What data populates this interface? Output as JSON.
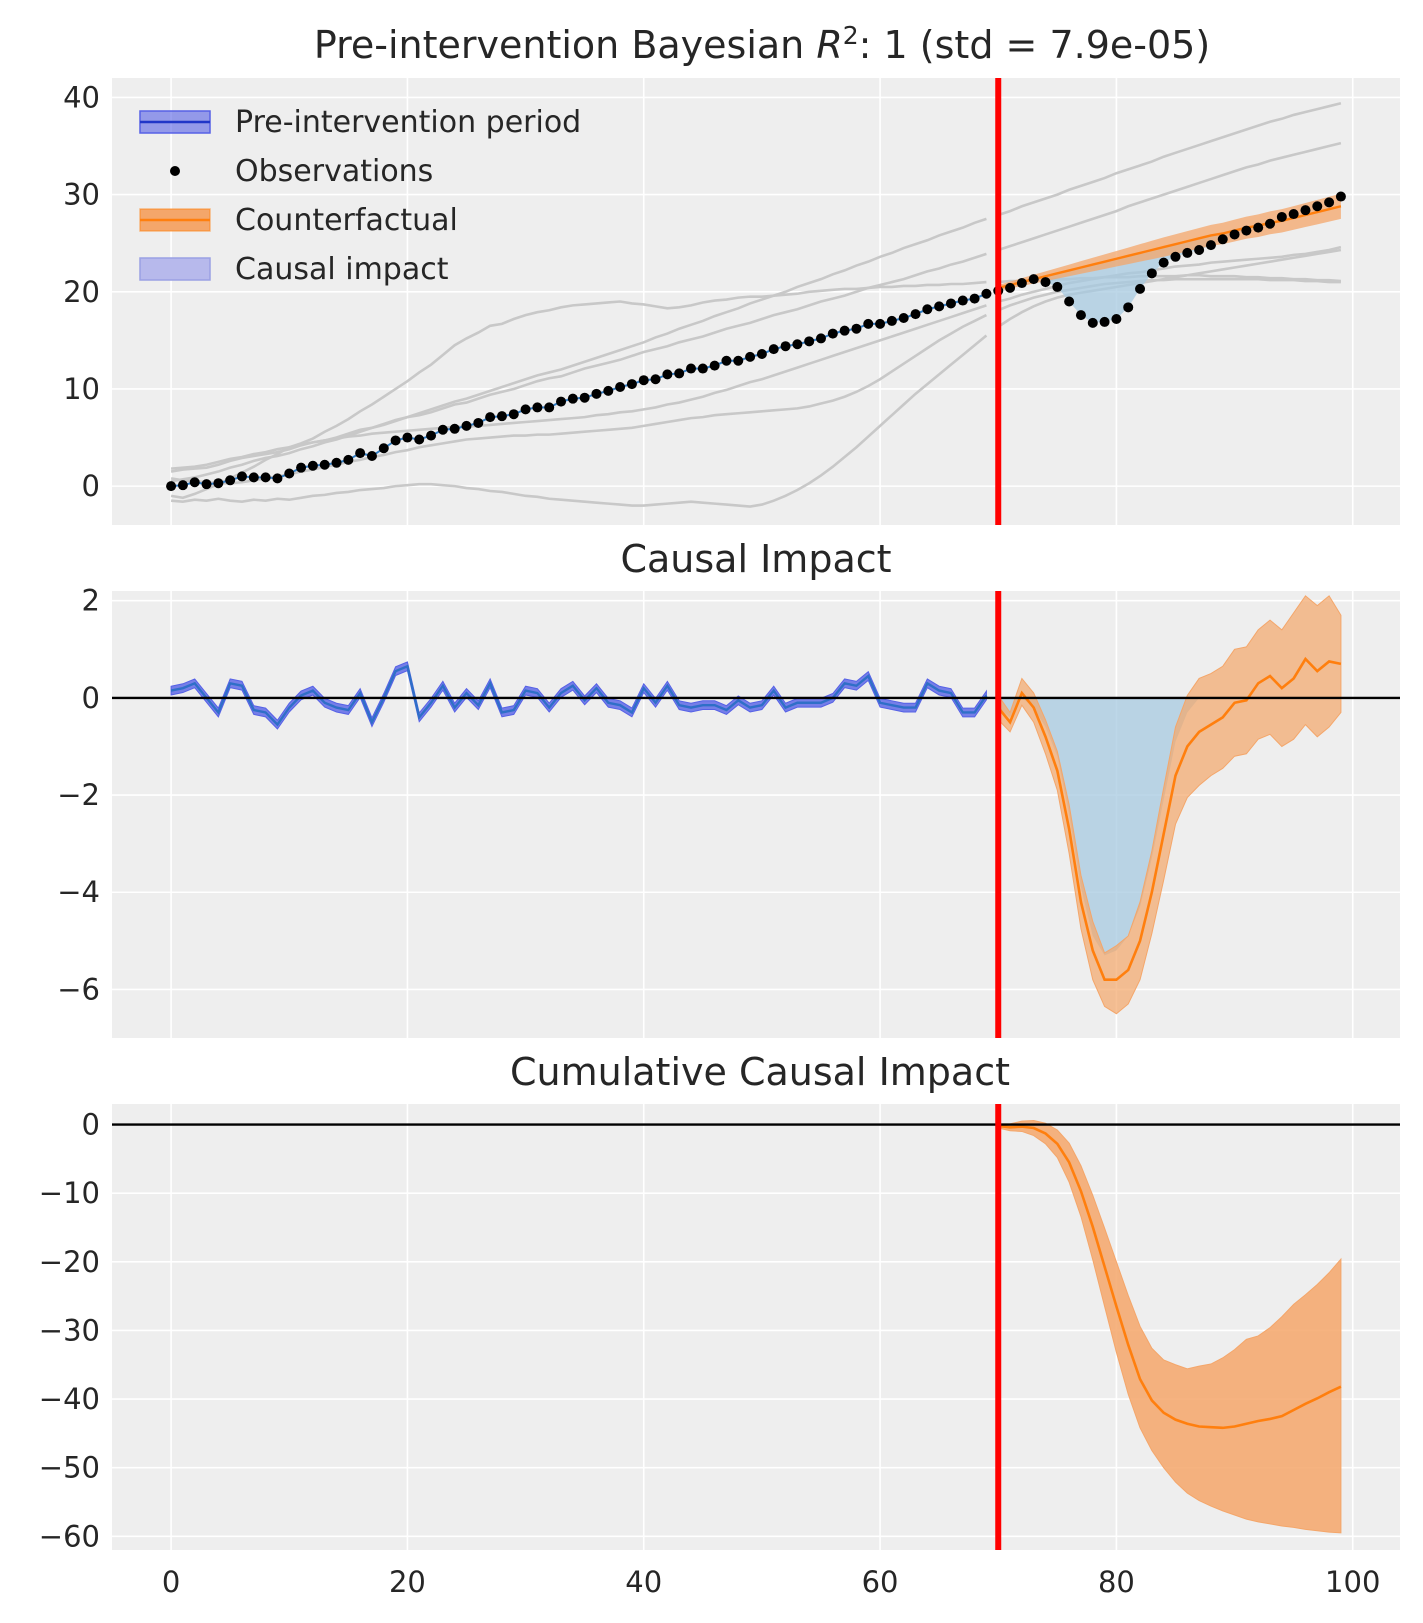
{
  "figure": {
    "background": "#ffffff",
    "axes_background": "#eeeeee",
    "grid_color": "#ffffff"
  },
  "colors": {
    "pre_band": "#5661e6",
    "pre_line": "#2f7fc1",
    "pre_line_panel": "#2f6fc8",
    "counterfactual": "#ff7f0e",
    "counterfactual_band": "#f4a66a",
    "impact_fill": "#a7c9e0",
    "observations": "#000000",
    "controls": "#c8c8c8",
    "intervention": "#ff0000",
    "zero_line": "#000000"
  },
  "chart_data": [
    {
      "type": "line",
      "id": "pre_fit",
      "title_prefix": "Pre-intervention Bayesian ",
      "title_math": "R",
      "title_superscript": "2",
      "title_suffix": ": 1 (std = 7.9e-05)",
      "xlim": [
        -5,
        104
      ],
      "ylim": [
        -4,
        42
      ],
      "xticks": [
        0,
        20,
        40,
        60,
        80,
        100
      ],
      "yticks": [
        0,
        10,
        20,
        30,
        40
      ],
      "ytick_labels": [
        "0",
        "10",
        "20",
        "30",
        "40"
      ],
      "intervention_x": 70,
      "legend_position": "upper-left",
      "legend": [
        {
          "key": "pre",
          "label": "Pre-intervention period"
        },
        {
          "key": "obs",
          "label": "Observations"
        },
        {
          "key": "cf",
          "label": "Counterfactual"
        },
        {
          "key": "impact",
          "label": "Causal impact"
        }
      ],
      "observations": [
        0.0,
        0.1,
        0.4,
        0.2,
        0.3,
        0.6,
        1.0,
        0.9,
        0.9,
        0.8,
        1.3,
        1.9,
        2.1,
        2.2,
        2.4,
        2.7,
        3.4,
        3.1,
        3.9,
        4.7,
        5.0,
        4.8,
        5.2,
        5.8,
        5.9,
        6.2,
        6.5,
        7.1,
        7.2,
        7.4,
        7.9,
        8.1,
        8.1,
        8.7,
        9.0,
        9.1,
        9.5,
        9.8,
        10.2,
        10.5,
        10.9,
        11.0,
        11.5,
        11.6,
        12.1,
        12.1,
        12.4,
        12.9,
        12.9,
        13.3,
        13.6,
        14.1,
        14.4,
        14.6,
        14.9,
        15.2,
        15.7,
        16.0,
        16.2,
        16.7,
        16.7,
        17.0,
        17.3,
        17.7,
        18.2,
        18.5,
        18.8,
        19.1,
        19.3,
        19.8,
        20.1,
        20.4,
        20.9,
        21.3,
        21.0,
        20.5,
        19.0,
        17.6,
        16.8,
        16.9,
        17.2,
        18.4,
        20.3,
        21.9,
        23.0,
        23.6,
        24.0,
        24.3,
        24.8,
        25.4,
        25.9,
        26.3,
        26.6,
        27.0,
        27.7,
        28.0,
        28.4,
        28.8,
        29.2,
        29.8
      ],
      "counterfactual_start": 70,
      "counterfactual": [
        20.4,
        20.7,
        21.0,
        21.3,
        21.6,
        21.9,
        22.2,
        22.5,
        22.8,
        23.1,
        23.4,
        23.7,
        24.0,
        24.3,
        24.6,
        24.9,
        25.2,
        25.5,
        25.8,
        26.0,
        26.3,
        26.6,
        26.8,
        27.1,
        27.3,
        27.6,
        27.9,
        28.2,
        28.5,
        28.8
      ],
      "counterfactual_halfwidth": [
        0.3,
        0.35,
        0.4,
        0.45,
        0.5,
        0.55,
        0.6,
        0.65,
        0.7,
        0.75,
        0.8,
        0.85,
        0.9,
        0.95,
        1.0,
        1.02,
        1.04,
        1.06,
        1.08,
        1.1,
        1.12,
        1.14,
        1.16,
        1.18,
        1.2,
        1.22,
        1.24,
        1.26,
        1.28,
        1.3
      ],
      "controls": [
        [
          1.5,
          1.7,
          1.8,
          1.9,
          2.2,
          2.6,
          2.9,
          3.1,
          3.3,
          3.5,
          3.8,
          4.2,
          4.5,
          4.7,
          5.0,
          5.4,
          5.8,
          6.0,
          6.4,
          6.8,
          7.1,
          7.3,
          7.6,
          8.0,
          8.4,
          8.6,
          9.0,
          9.4,
          9.7,
          10.0,
          10.4,
          10.8,
          11.1,
          11.3,
          11.7,
          12.1,
          12.4,
          12.7,
          13.0,
          13.4,
          13.8,
          14.1,
          14.4,
          14.8,
          15.1,
          15.4,
          15.8,
          16.2,
          16.5,
          16.8,
          17.2,
          17.6,
          17.9,
          18.2,
          18.6,
          19.0,
          19.3,
          19.6,
          20.0,
          20.4,
          20.7,
          21.0,
          21.3,
          21.7,
          22.1,
          22.4,
          22.8,
          23.1,
          23.5,
          23.9,
          24.3,
          24.7,
          25.1,
          25.5,
          25.9,
          26.3,
          26.7,
          27.1,
          27.5,
          27.9,
          28.3,
          28.8,
          29.2,
          29.6,
          30.0,
          30.4,
          30.8,
          31.2,
          31.6,
          32.0,
          32.4,
          32.8,
          33.1,
          33.5,
          33.8,
          34.1,
          34.4,
          34.7,
          35.0,
          35.3
        ],
        [
          -1.0,
          -1.2,
          -0.8,
          -0.3,
          0.2,
          0.8,
          1.4,
          2.0,
          2.7,
          3.3,
          4.0,
          4.4,
          4.9,
          5.6,
          6.2,
          6.9,
          7.7,
          8.4,
          9.2,
          10.0,
          10.8,
          11.7,
          12.5,
          13.5,
          14.5,
          15.2,
          15.8,
          16.5,
          16.7,
          17.2,
          17.6,
          17.9,
          18.1,
          18.4,
          18.6,
          18.7,
          18.8,
          18.9,
          19.0,
          18.8,
          18.7,
          18.5,
          18.3,
          18.4,
          18.6,
          18.9,
          19.1,
          19.2,
          19.4,
          19.5,
          19.5,
          19.6,
          19.7,
          19.8,
          20.0,
          20.1,
          20.2,
          20.3,
          20.3,
          20.4,
          20.5,
          20.5,
          20.6,
          20.6,
          20.7,
          20.7,
          20.8,
          20.8,
          20.9,
          21.0,
          21.0,
          21.1,
          21.1,
          21.2,
          21.2,
          21.3,
          21.3,
          21.4,
          21.4,
          21.5,
          21.5,
          21.5,
          21.6,
          21.6,
          21.6,
          21.6,
          21.7,
          21.7,
          21.6,
          21.6,
          21.6,
          21.5,
          21.5,
          21.4,
          21.4,
          21.3,
          21.3,
          21.2,
          21.2,
          21.1
        ],
        [
          0.5,
          0.7,
          0.9,
          1.2,
          1.5,
          1.9,
          2.2,
          2.6,
          2.9,
          3.1,
          3.4,
          3.8,
          4.1,
          4.5,
          4.8,
          5.2,
          5.6,
          6.0,
          6.3,
          6.7,
          7.1,
          7.5,
          7.9,
          8.3,
          8.7,
          9.0,
          9.4,
          9.8,
          10.2,
          10.6,
          11.0,
          11.4,
          11.7,
          12.0,
          12.4,
          12.8,
          13.2,
          13.6,
          14.0,
          14.4,
          14.8,
          15.3,
          15.7,
          16.2,
          16.6,
          17.0,
          17.5,
          17.9,
          18.3,
          18.8,
          19.2,
          19.6,
          20.0,
          20.5,
          20.9,
          21.3,
          21.8,
          22.2,
          22.7,
          23.1,
          23.6,
          24.0,
          24.5,
          24.9,
          25.3,
          25.8,
          26.2,
          26.6,
          27.1,
          27.5,
          27.9,
          28.3,
          28.8,
          29.2,
          29.6,
          30.0,
          30.5,
          30.9,
          31.3,
          31.7,
          32.2,
          32.6,
          33.0,
          33.4,
          33.9,
          34.3,
          34.7,
          35.1,
          35.5,
          35.9,
          36.3,
          36.7,
          37.1,
          37.5,
          37.8,
          38.2,
          38.5,
          38.8,
          39.1,
          39.4
        ],
        [
          1.8,
          1.9,
          2.0,
          2.2,
          2.5,
          2.8,
          3.0,
          3.3,
          3.5,
          3.8,
          4.0,
          4.3,
          4.5,
          4.7,
          4.9,
          5.1,
          5.2,
          5.4,
          5.5,
          5.6,
          5.7,
          5.8,
          5.9,
          6.0,
          6.1,
          6.1,
          6.2,
          6.3,
          6.4,
          6.5,
          6.6,
          6.7,
          6.8,
          6.9,
          7.0,
          7.1,
          7.3,
          7.4,
          7.6,
          7.7,
          7.9,
          8.1,
          8.4,
          8.6,
          8.9,
          9.2,
          9.6,
          9.9,
          10.3,
          10.7,
          11.0,
          11.4,
          11.8,
          12.2,
          12.6,
          13.0,
          13.4,
          13.8,
          14.2,
          14.6,
          15.0,
          15.4,
          15.8,
          16.2,
          16.6,
          17.0,
          17.4,
          17.8,
          18.2,
          18.6,
          19.0,
          19.3,
          19.7,
          20.0,
          20.3,
          20.6,
          20.9,
          21.1,
          21.3,
          21.5,
          21.7,
          21.9,
          22.0,
          22.2,
          22.4,
          22.6,
          22.7,
          22.8,
          23.0,
          23.1,
          23.2,
          23.3,
          23.4,
          23.5,
          23.6,
          23.8,
          23.9,
          24.1,
          24.3,
          24.6
        ],
        [
          -1.5,
          -1.6,
          -1.4,
          -1.5,
          -1.3,
          -1.5,
          -1.6,
          -1.4,
          -1.5,
          -1.3,
          -1.4,
          -1.2,
          -1.0,
          -0.9,
          -0.7,
          -0.6,
          -0.4,
          -0.3,
          -0.2,
          0.0,
          0.1,
          0.2,
          0.2,
          0.1,
          0.0,
          -0.2,
          -0.3,
          -0.5,
          -0.6,
          -0.8,
          -1.0,
          -1.1,
          -1.3,
          -1.4,
          -1.5,
          -1.6,
          -1.7,
          -1.8,
          -1.9,
          -2.0,
          -2.0,
          -1.9,
          -1.8,
          -1.7,
          -1.6,
          -1.7,
          -1.8,
          -1.9,
          -2.0,
          -2.1,
          -1.9,
          -1.5,
          -1.0,
          -0.4,
          0.3,
          1.1,
          2.0,
          3.0,
          4.0,
          5.1,
          6.2,
          7.3,
          8.4,
          9.5,
          10.5,
          11.5,
          12.5,
          13.5,
          14.5,
          15.5,
          16.4,
          17.2,
          17.9,
          18.5,
          19.0,
          19.4,
          19.7,
          19.9,
          20.1,
          20.3,
          20.5,
          20.7,
          20.9,
          21.1,
          21.3,
          21.5,
          21.7,
          21.9,
          22.1,
          22.3,
          22.5,
          22.7,
          22.9,
          23.1,
          23.3,
          23.5,
          23.7,
          23.9,
          24.1,
          24.3
        ],
        [
          0.8,
          0.6,
          0.5,
          0.4,
          0.3,
          0.3,
          0.4,
          0.6,
          0.8,
          1.0,
          1.2,
          1.5,
          1.7,
          2.0,
          2.2,
          2.5,
          2.7,
          3.0,
          3.2,
          3.5,
          3.7,
          4.0,
          4.2,
          4.4,
          4.6,
          4.8,
          4.9,
          5.0,
          5.1,
          5.2,
          5.2,
          5.3,
          5.3,
          5.4,
          5.5,
          5.6,
          5.7,
          5.8,
          5.9,
          6.0,
          6.2,
          6.4,
          6.6,
          6.8,
          7.0,
          7.1,
          7.3,
          7.4,
          7.5,
          7.6,
          7.7,
          7.8,
          7.9,
          8.0,
          8.2,
          8.5,
          8.8,
          9.2,
          9.7,
          10.3,
          11.0,
          11.8,
          12.6,
          13.4,
          14.2,
          15.0,
          15.7,
          16.4,
          17.0,
          17.6,
          18.1,
          18.6,
          19.0,
          19.4,
          19.7,
          20.0,
          20.2,
          20.4,
          20.6,
          20.8,
          20.9,
          21.0,
          21.1,
          21.2,
          21.2,
          21.3,
          21.3,
          21.3,
          21.3,
          21.3,
          21.3,
          21.3,
          21.3,
          21.2,
          21.2,
          21.2,
          21.1,
          21.1,
          21.0,
          21.0
        ]
      ]
    },
    {
      "type": "line",
      "id": "impact",
      "title": "Causal Impact",
      "xlim": [
        -5,
        104
      ],
      "ylim": [
        -7,
        2.2
      ],
      "xticks": [
        0,
        20,
        40,
        60,
        80,
        100
      ],
      "yticks": [
        2,
        0,
        -2,
        -4,
        -6
      ],
      "ytick_labels": [
        "2",
        "0",
        "−2",
        "−4",
        "−6"
      ],
      "intervention_x": 70,
      "pre_residuals": [
        0.15,
        0.2,
        0.3,
        0.0,
        -0.3,
        0.3,
        0.25,
        -0.25,
        -0.3,
        -0.55,
        -0.2,
        0.05,
        0.15,
        -0.1,
        -0.2,
        -0.25,
        0.1,
        -0.5,
        0.0,
        0.55,
        0.65,
        -0.4,
        -0.1,
        0.25,
        -0.2,
        0.1,
        -0.15,
        0.3,
        -0.3,
        -0.25,
        0.15,
        0.1,
        -0.2,
        0.1,
        0.25,
        -0.05,
        0.2,
        -0.1,
        -0.15,
        -0.3,
        0.2,
        -0.1,
        0.25,
        -0.15,
        -0.2,
        -0.15,
        -0.15,
        -0.25,
        -0.05,
        -0.2,
        -0.15,
        0.15,
        -0.2,
        -0.1,
        -0.1,
        -0.1,
        0.0,
        0.3,
        0.25,
        0.45,
        -0.1,
        -0.15,
        -0.2,
        -0.2,
        0.3,
        0.15,
        0.1,
        -0.3,
        -0.3,
        0.05
      ],
      "pre_halfwidth": 0.09,
      "post_start": 70,
      "post_impact": [
        -0.2,
        -0.5,
        0.1,
        -0.2,
        -0.8,
        -1.5,
        -2.7,
        -4.2,
        -5.2,
        -5.8,
        -5.8,
        -5.6,
        -5.0,
        -4.0,
        -2.8,
        -1.6,
        -1.0,
        -0.7,
        -0.55,
        -0.4,
        -0.1,
        -0.05,
        0.3,
        0.45,
        0.2,
        0.4,
        0.8,
        0.55,
        0.75,
        0.7
      ],
      "post_lower": [
        -0.45,
        -0.7,
        -0.15,
        -0.5,
        -1.15,
        -1.9,
        -3.2,
        -4.75,
        -5.8,
        -6.35,
        -6.5,
        -6.3,
        -5.8,
        -4.85,
        -3.75,
        -2.6,
        -2.05,
        -1.8,
        -1.6,
        -1.45,
        -1.2,
        -1.15,
        -0.85,
        -0.75,
        -1.0,
        -0.85,
        -0.55,
        -0.8,
        -0.6,
        -0.3
      ],
      "post_upper": [
        0.05,
        -0.3,
        0.4,
        0.1,
        -0.45,
        -1.1,
        -2.2,
        -3.65,
        -4.6,
        -5.25,
        -5.1,
        -4.9,
        -4.2,
        -3.15,
        -1.85,
        -0.6,
        0.05,
        0.4,
        0.5,
        0.65,
        1.0,
        1.05,
        1.4,
        1.6,
        1.4,
        1.75,
        2.1,
        1.9,
        2.1,
        1.7
      ],
      "impact_fill_lower": [
        -0.2,
        -0.4,
        0.0,
        -0.2,
        -0.6,
        -1.2,
        -2.4,
        -3.9,
        -4.9,
        -5.3,
        -5.2,
        -4.9,
        -4.3,
        -3.3,
        -2.1,
        -0.9,
        -0.3,
        0.0,
        0.0,
        0.0,
        0.0,
        0.0,
        0.0,
        0.0,
        0.0,
        0.0,
        0.0,
        0.0,
        0.0,
        0.0
      ]
    },
    {
      "type": "line",
      "id": "cumulative",
      "title": "Cumulative Causal Impact",
      "xlim": [
        -5,
        104
      ],
      "ylim": [
        -62,
        3
      ],
      "xticks": [
        0,
        20,
        40,
        60,
        80,
        100
      ],
      "xtick_labels": [
        "0",
        "20",
        "40",
        "60",
        "80",
        "100"
      ],
      "yticks": [
        0,
        -10,
        -20,
        -30,
        -40,
        -50,
        -60
      ],
      "ytick_labels": [
        "0",
        "−10",
        "−20",
        "−30",
        "−40",
        "−50",
        "−60"
      ],
      "intervention_x": 70,
      "post_start": 70,
      "cumulative": [
        -0.2,
        -0.4,
        -0.3,
        -0.5,
        -1.3,
        -2.8,
        -5.5,
        -9.7,
        -14.9,
        -20.7,
        -26.5,
        -32.1,
        -37.1,
        -40.2,
        -42.0,
        -43.0,
        -43.6,
        -44.0,
        -44.1,
        -44.2,
        -44.0,
        -43.6,
        -43.2,
        -42.9,
        -42.5,
        -41.6,
        -40.7,
        -39.9,
        -39.0,
        -38.2
      ],
      "cumulative_lower": [
        -0.5,
        -0.9,
        -1.0,
        -1.6,
        -2.8,
        -4.8,
        -8.4,
        -13.4,
        -19.7,
        -26.5,
        -33.2,
        -39.3,
        -44.2,
        -47.5,
        -50.0,
        -52.1,
        -53.7,
        -54.8,
        -55.6,
        -56.3,
        -56.9,
        -57.5,
        -57.9,
        -58.2,
        -58.5,
        -58.7,
        -59.0,
        -59.2,
        -59.4,
        -59.5
      ],
      "cumulative_upper": [
        0.1,
        0.1,
        0.5,
        0.6,
        0.2,
        -0.8,
        -2.7,
        -6.0,
        -10.3,
        -15.1,
        -20.0,
        -24.9,
        -29.4,
        -32.6,
        -34.3,
        -35.0,
        -35.6,
        -35.2,
        -34.9,
        -34.0,
        -32.8,
        -31.3,
        -30.8,
        -29.6,
        -28.0,
        -26.2,
        -24.8,
        -23.3,
        -21.6,
        -19.6
      ]
    }
  ]
}
